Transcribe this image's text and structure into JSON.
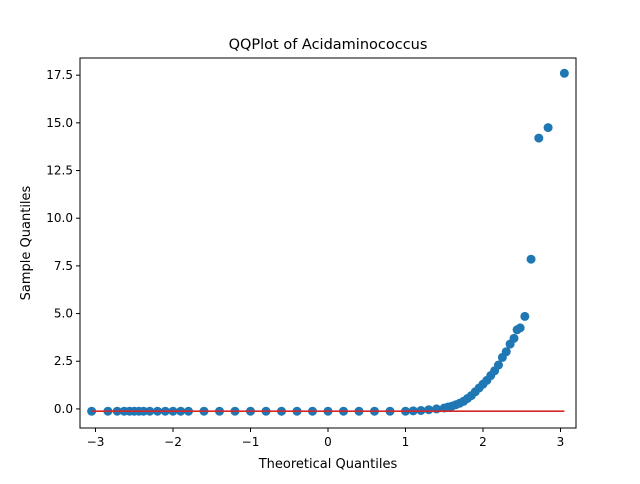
{
  "chart_data": {
    "type": "scatter",
    "title": "QQPlot of Acidaminococcus",
    "xlabel": "Theoretical Quantiles",
    "ylabel": "Sample Quantiles",
    "xlim": [
      -3.2,
      3.2
    ],
    "ylim": [
      -1.0,
      18.4
    ],
    "x_ticks": [
      -3,
      -2,
      -1,
      0,
      1,
      2,
      3
    ],
    "x_tick_labels": [
      "−3",
      "−2",
      "−1",
      "0",
      "1",
      "2",
      "3"
    ],
    "y_ticks": [
      0.0,
      2.5,
      5.0,
      7.5,
      10.0,
      12.5,
      15.0,
      17.5
    ],
    "y_tick_labels": [
      "0.0",
      "2.5",
      "5.0",
      "7.5",
      "10.0",
      "12.5",
      "15.0",
      "17.5"
    ],
    "grid": false,
    "series": [
      {
        "color": "#1f77b4",
        "x": [
          -3.05,
          -2.84,
          -2.72,
          -2.63,
          -2.56,
          -2.5,
          -2.44,
          -2.38,
          -2.3,
          -2.2,
          -2.1,
          -2.0,
          -1.9,
          -1.8,
          -1.6,
          -1.4,
          -1.2,
          -1.0,
          -0.8,
          -0.6,
          -0.4,
          -0.2,
          0.0,
          0.2,
          0.4,
          0.6,
          0.8,
          1.0,
          1.1,
          1.2,
          1.3,
          1.4,
          1.5,
          1.55,
          1.6,
          1.65,
          1.7,
          1.75,
          1.8,
          1.85,
          1.9,
          1.95,
          2.0,
          2.05,
          2.1,
          2.15,
          2.2,
          2.25,
          2.3,
          2.35,
          2.4,
          2.44,
          2.48,
          2.54,
          2.62,
          2.72,
          2.84,
          3.05
        ],
        "y": [
          -0.12,
          -0.12,
          -0.12,
          -0.12,
          -0.12,
          -0.12,
          -0.12,
          -0.12,
          -0.12,
          -0.12,
          -0.12,
          -0.12,
          -0.12,
          -0.12,
          -0.12,
          -0.12,
          -0.12,
          -0.12,
          -0.12,
          -0.12,
          -0.12,
          -0.12,
          -0.12,
          -0.12,
          -0.12,
          -0.12,
          -0.12,
          -0.12,
          -0.1,
          -0.08,
          -0.04,
          0.0,
          0.05,
          0.1,
          0.15,
          0.22,
          0.3,
          0.4,
          0.55,
          0.7,
          0.9,
          1.1,
          1.3,
          1.5,
          1.75,
          2.0,
          2.3,
          2.7,
          3.0,
          3.4,
          3.7,
          4.15,
          4.25,
          4.85,
          7.85,
          14.2,
          14.75,
          17.6
        ]
      },
      {
        "color": "#d62728",
        "x": [
          -3.05,
          3.05
        ],
        "y": [
          -0.12,
          -0.12
        ]
      }
    ]
  }
}
